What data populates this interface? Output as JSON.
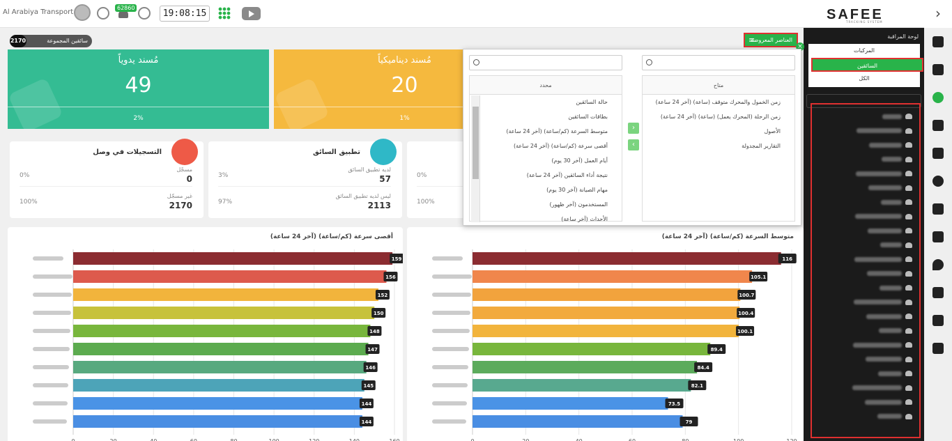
{
  "topbar": {
    "company": "Al Arabiya Transport",
    "notification_count": "62860",
    "time": "19:08:15",
    "icons": [
      "avatar-icon",
      "globe-icon",
      "bell-icon",
      "gauge-icon",
      "apps-grid-icon",
      "video-play-icon"
    ]
  },
  "brand": {
    "logo": "SAFEE",
    "tagline": "TRACKING SYSTEM"
  },
  "accent_color": "#29b34a",
  "group": {
    "count": "2170",
    "label": "سائقين المجموعة"
  },
  "cards": [
    {
      "title": "مُسند يدوياً",
      "value": "49",
      "percent": "2%",
      "color": "#34bc93"
    },
    {
      "title": "مُسند ديناميكياً",
      "value": "20",
      "percent": "1%",
      "color": "#f5b93e"
    }
  ],
  "stats": [
    {
      "title": "التسجيلات في وصل",
      "icon_color": "#ee5a47",
      "icon": "registration-icon",
      "rows": [
        {
          "label": "مسجّل",
          "value": "0",
          "percent": "0%"
        },
        {
          "label": "غير مسجّل",
          "value": "2170",
          "percent": "100%"
        }
      ]
    },
    {
      "title": "تطبيق السائق",
      "icon_color": "#2fb8c7",
      "icon": "mobile-icon",
      "rows": [
        {
          "label": "لديه تطبيق السائق",
          "value": "57",
          "percent": "3%"
        },
        {
          "label": "ليس لديه تطبيق السائق",
          "value": "2113",
          "percent": "97%"
        }
      ]
    },
    {
      "title": "",
      "icon_color": "",
      "icon": "",
      "rows": [
        {
          "label": "",
          "value": "",
          "percent": "0%"
        },
        {
          "label": "",
          "value": "",
          "percent": "100%"
        }
      ]
    }
  ],
  "dropdown": {
    "available_header": "متاح",
    "selected_header": "محدد",
    "available_items": [
      "زمن الخمول والمحرك متوقف (ساعة) (آخر 24 ساعة)",
      "زمن الرحلة (المحرك يعمل) (ساعة) (آخر 24 ساعة)",
      "الأصول",
      "التقارير المجدولة"
    ],
    "selected_items": [
      "حالة السائقين",
      "بطاقات السائقين",
      "متوسط السرعة (كم/ساعة) (آخر 24 ساعة)",
      "أقصى سرعة (كم/ساعة) (آخر 24 ساعة)",
      "أيام العمل (آخر 30 يوم)",
      "نتيجة أداء السائقين (آخر 24 ساعة)",
      "مهام الصيانة (آخر 30 يوم)",
      "المستخدمون (آخر ظهور)",
      "الأحداث (آخر ساعة)"
    ],
    "move_right_label": "›",
    "move_left_label": "‹"
  },
  "fields_button": {
    "label": "العناصر المعروضة",
    "close": "×"
  },
  "panel": {
    "title": "لوحة المراقبة",
    "options": [
      "المركبات",
      "السائقين",
      "الكل"
    ],
    "selected_option": "السائقين"
  },
  "chart_data": [
    {
      "type": "bar",
      "title": "أقصى سرعة (كم/ساعة) (آخر 24 ساعة)",
      "orientation": "horizontal",
      "values": [
        159,
        156,
        152,
        150,
        148,
        147,
        146,
        145,
        144,
        144
      ],
      "colors": [
        "#8b2c31",
        "#dd5a4d",
        "#f2b43c",
        "#c7c23b",
        "#78b63c",
        "#5cab4f",
        "#58a97f",
        "#4da4b8",
        "#4a93e6",
        "#4a8ee3"
      ],
      "xlim": [
        0,
        160
      ],
      "xticks": [
        0,
        20,
        40,
        60,
        80,
        100,
        120,
        140,
        160
      ],
      "grid": true
    },
    {
      "type": "bar",
      "title": "متوسط السرعة (كم/ساعة) (آخر 24 ساعة)",
      "orientation": "horizontal",
      "values": [
        116,
        105.1,
        100.7,
        100.4,
        100.1,
        89.4,
        84.4,
        82.1,
        73.5,
        79
      ],
      "colors": [
        "#8b2c31",
        "#f0864c",
        "#f2a33d",
        "#f2aa3d",
        "#f2b43c",
        "#78b63c",
        "#5cab5c",
        "#58a98f",
        "#4a93e6",
        "#4a8ee3"
      ],
      "xlim": [
        0,
        120
      ],
      "xticks": [
        0,
        20,
        40,
        60,
        80,
        100,
        120
      ],
      "grid": true
    }
  ]
}
